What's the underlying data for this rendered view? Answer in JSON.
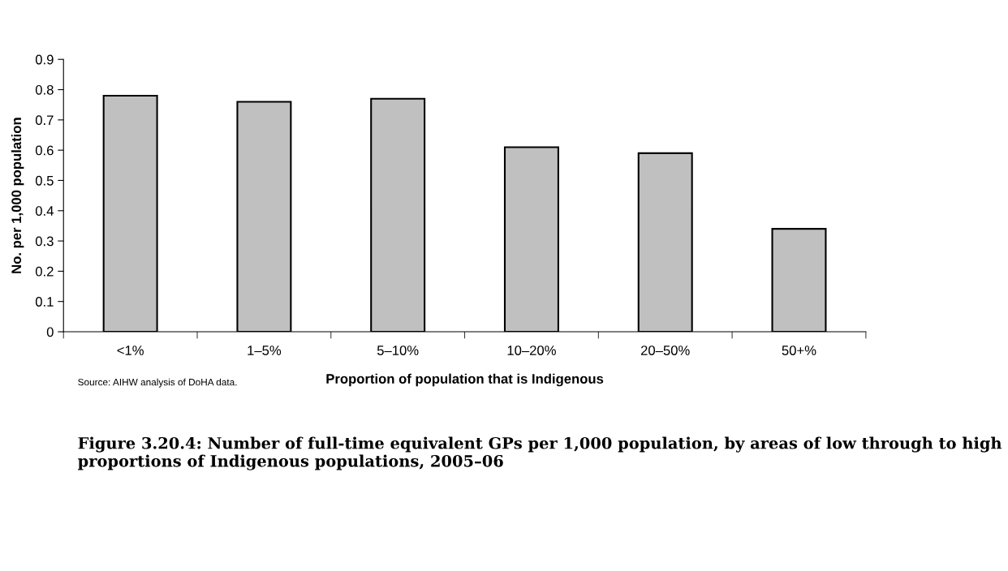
{
  "chart_data": {
    "type": "bar",
    "title": "Figure 3.20.4: Number of full-time equivalent GPs per 1,000 population, by areas of low through to high proportions of Indigenous populations, 2005–06",
    "xlabel": "Proportion of population that is Indigenous",
    "ylabel": "No. per 1,000 population",
    "categories": [
      "<1%",
      "1–5%",
      "5–10%",
      "10–20%",
      "20–50%",
      "50+%"
    ],
    "values": [
      0.78,
      0.76,
      0.77,
      0.61,
      0.59,
      0.34
    ],
    "color": "#c0c0c0",
    "ylim": [
      0,
      0.9
    ],
    "yticks": [
      0,
      0.1,
      0.2,
      0.3,
      0.4,
      0.5,
      0.6,
      0.7,
      0.8,
      0.9
    ],
    "annotations": [
      "Source: AIHW analysis of DoHA data."
    ]
  }
}
